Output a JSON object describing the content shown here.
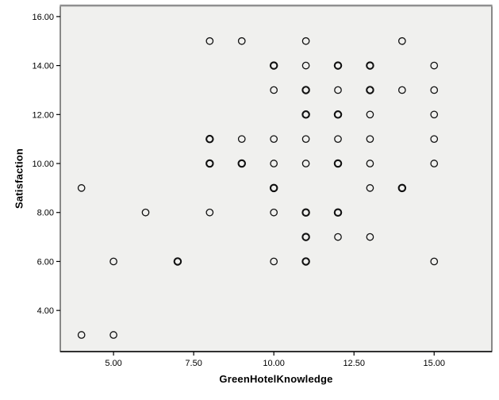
{
  "chart_data": {
    "type": "scatter",
    "title": "",
    "xlabel": "GreenHotelKnowledge",
    "ylabel": "Satisfaction",
    "xlim": [
      3.34,
      16.8
    ],
    "ylim": [
      2.32,
      16.45
    ],
    "grid": false,
    "legend": "none",
    "x_ticks": [
      {
        "value": 5,
        "label": "5.00"
      },
      {
        "value": 7.5,
        "label": "7.50"
      },
      {
        "value": 10,
        "label": "10.00"
      },
      {
        "value": 12.5,
        "label": "12.50"
      },
      {
        "value": 15,
        "label": "15.00"
      }
    ],
    "y_ticks": [
      {
        "value": 4,
        "label": "4.00"
      },
      {
        "value": 6,
        "label": "6.00"
      },
      {
        "value": 8,
        "label": "8.00"
      },
      {
        "value": 10,
        "label": "10.00"
      },
      {
        "value": 12,
        "label": "12.00"
      },
      {
        "value": 14,
        "label": "14.00"
      },
      {
        "value": 16,
        "label": "16.00"
      }
    ],
    "marker": {
      "shape": "open-circle",
      "radius": 4.2,
      "stroke_normal": 1.3,
      "stroke_bold": 2.1
    },
    "points": [
      {
        "x": 8,
        "y": 15
      },
      {
        "x": 9,
        "y": 15
      },
      {
        "x": 11,
        "y": 15
      },
      {
        "x": 14,
        "y": 15
      },
      {
        "x": 10,
        "y": 14,
        "bold": true
      },
      {
        "x": 11,
        "y": 14
      },
      {
        "x": 12,
        "y": 14,
        "bold": true
      },
      {
        "x": 13,
        "y": 14,
        "bold": true
      },
      {
        "x": 15,
        "y": 14
      },
      {
        "x": 10,
        "y": 13
      },
      {
        "x": 11,
        "y": 13,
        "bold": true
      },
      {
        "x": 12,
        "y": 13
      },
      {
        "x": 13,
        "y": 13,
        "bold": true
      },
      {
        "x": 14,
        "y": 13
      },
      {
        "x": 15,
        "y": 13
      },
      {
        "x": 11,
        "y": 12,
        "bold": true
      },
      {
        "x": 12,
        "y": 12,
        "bold": true
      },
      {
        "x": 13,
        "y": 12
      },
      {
        "x": 15,
        "y": 12
      },
      {
        "x": 8,
        "y": 11,
        "bold": true
      },
      {
        "x": 9,
        "y": 11
      },
      {
        "x": 10,
        "y": 11
      },
      {
        "x": 11,
        "y": 11
      },
      {
        "x": 12,
        "y": 11
      },
      {
        "x": 13,
        "y": 11
      },
      {
        "x": 15,
        "y": 11
      },
      {
        "x": 8,
        "y": 10,
        "bold": true
      },
      {
        "x": 9,
        "y": 10,
        "bold": true
      },
      {
        "x": 10,
        "y": 10
      },
      {
        "x": 11,
        "y": 10
      },
      {
        "x": 12,
        "y": 10,
        "bold": true
      },
      {
        "x": 13,
        "y": 10
      },
      {
        "x": 15,
        "y": 10
      },
      {
        "x": 4,
        "y": 9
      },
      {
        "x": 10,
        "y": 9,
        "bold": true
      },
      {
        "x": 13,
        "y": 9
      },
      {
        "x": 14,
        "y": 9,
        "bold": true
      },
      {
        "x": 6,
        "y": 8
      },
      {
        "x": 8,
        "y": 8
      },
      {
        "x": 10,
        "y": 8
      },
      {
        "x": 11,
        "y": 8,
        "bold": true
      },
      {
        "x": 12,
        "y": 8,
        "bold": true
      },
      {
        "x": 11,
        "y": 7,
        "bold": true
      },
      {
        "x": 12,
        "y": 7
      },
      {
        "x": 13,
        "y": 7
      },
      {
        "x": 5,
        "y": 6
      },
      {
        "x": 7,
        "y": 6,
        "bold": true
      },
      {
        "x": 10,
        "y": 6
      },
      {
        "x": 11,
        "y": 6,
        "bold": true
      },
      {
        "x": 15,
        "y": 6
      },
      {
        "x": 4,
        "y": 3
      },
      {
        "x": 5,
        "y": 3
      }
    ],
    "colors": {
      "plot_background": "#f0f0ee",
      "page_background": "#ffffff",
      "frame_border": "#3f3f3f",
      "frame_top_highlight": "#8f8f8f",
      "marker_stroke": "#111111",
      "tick_color": "#000000"
    }
  }
}
